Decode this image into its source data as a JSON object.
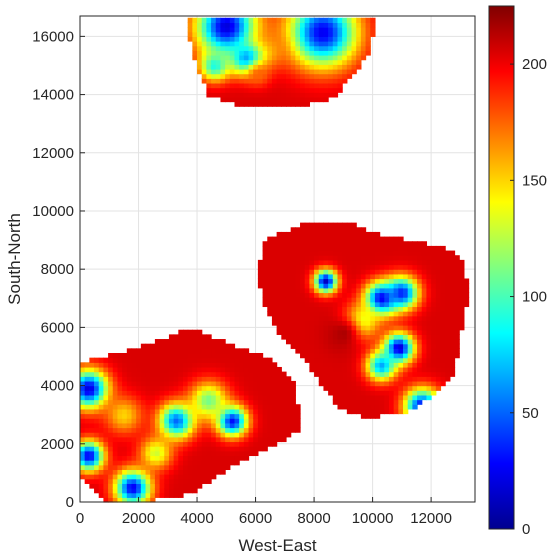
{
  "chart_data": {
    "type": "heatmap",
    "title": "",
    "xlabel": "West-East",
    "ylabel": "South-North",
    "xlim": [
      0,
      13500
    ],
    "ylim": [
      0,
      16700
    ],
    "xticks": [
      0,
      2000,
      4000,
      6000,
      8000,
      10000,
      12000
    ],
    "yticks": [
      0,
      2000,
      4000,
      6000,
      8000,
      10000,
      12000,
      14000,
      16000
    ],
    "grid": true,
    "colormap": "jet",
    "clim": [
      0,
      225
    ],
    "colorbar_ticks": [
      0,
      50,
      100,
      150,
      200
    ],
    "regions": [
      {
        "name": "north",
        "outline": [
          [
            3750,
            16700
          ],
          [
            10050,
            16700
          ],
          [
            10050,
            16100
          ],
          [
            9800,
            15300
          ],
          [
            9300,
            14600
          ],
          [
            8600,
            13850
          ],
          [
            7400,
            13600
          ],
          [
            5600,
            13600
          ],
          [
            4400,
            14000
          ],
          [
            4000,
            14900
          ],
          [
            3750,
            15800
          ]
        ],
        "base_value": 205,
        "blobs": [
          {
            "x": 5000,
            "y": 16350,
            "r": 1100,
            "v": 20
          },
          {
            "x": 8300,
            "y": 16150,
            "r": 1250,
            "v": 25
          },
          {
            "x": 6500,
            "y": 15550,
            "r": 650,
            "v": 165
          },
          {
            "x": 5700,
            "y": 15250,
            "r": 600,
            "v": 60
          },
          {
            "x": 4600,
            "y": 15000,
            "r": 550,
            "v": 90
          },
          {
            "x": 6100,
            "y": 14700,
            "r": 450,
            "v": 175
          }
        ]
      },
      {
        "name": "east",
        "outline": [
          [
            6400,
            9100
          ],
          [
            7800,
            9600
          ],
          [
            9200,
            9600
          ],
          [
            10200,
            9200
          ],
          [
            11300,
            9000
          ],
          [
            12600,
            8700
          ],
          [
            13100,
            8300
          ],
          [
            13300,
            7200
          ],
          [
            13000,
            5800
          ],
          [
            12800,
            4400
          ],
          [
            12000,
            3600
          ],
          [
            11200,
            3100
          ],
          [
            9800,
            2900
          ],
          [
            8900,
            3200
          ],
          [
            8200,
            4100
          ],
          [
            7600,
            5000
          ],
          [
            6800,
            5800
          ],
          [
            6300,
            6700
          ],
          [
            6100,
            7700
          ],
          [
            6200,
            8600
          ]
        ],
        "base_value": 205,
        "blobs": [
          {
            "x": 8400,
            "y": 7600,
            "r": 420,
            "v": 15
          },
          {
            "x": 10300,
            "y": 7000,
            "r": 600,
            "v": 20
          },
          {
            "x": 11000,
            "y": 7200,
            "r": 600,
            "v": 35
          },
          {
            "x": 10900,
            "y": 5300,
            "r": 550,
            "v": 15
          },
          {
            "x": 10300,
            "y": 4700,
            "r": 550,
            "v": 65
          },
          {
            "x": 9600,
            "y": 6200,
            "r": 650,
            "v": 120
          },
          {
            "x": 11700,
            "y": 3300,
            "r": 650,
            "v": 25
          },
          {
            "x": 9000,
            "y": 5800,
            "r": 700,
            "v": 215
          }
        ]
      },
      {
        "name": "southwest",
        "outline": [
          [
            0,
            4800
          ],
          [
            1600,
            5200
          ],
          [
            2800,
            5600
          ],
          [
            3800,
            6000
          ],
          [
            5200,
            5400
          ],
          [
            6400,
            5000
          ],
          [
            7400,
            4000
          ],
          [
            7500,
            2500
          ],
          [
            6400,
            1800
          ],
          [
            5200,
            1200
          ],
          [
            3800,
            300
          ],
          [
            2200,
            0
          ],
          [
            800,
            0
          ],
          [
            0,
            900
          ]
        ],
        "base_value": 205,
        "blobs": [
          {
            "x": 300,
            "y": 3900,
            "r": 700,
            "v": 20
          },
          {
            "x": 300,
            "y": 1600,
            "r": 550,
            "v": 25
          },
          {
            "x": 1800,
            "y": 500,
            "r": 650,
            "v": 25
          },
          {
            "x": 3300,
            "y": 2800,
            "r": 650,
            "v": 50
          },
          {
            "x": 5200,
            "y": 2800,
            "r": 550,
            "v": 25
          },
          {
            "x": 1500,
            "y": 3000,
            "r": 700,
            "v": 150
          },
          {
            "x": 4400,
            "y": 3500,
            "r": 700,
            "v": 110
          },
          {
            "x": 2600,
            "y": 1700,
            "r": 600,
            "v": 130
          }
        ]
      }
    ]
  }
}
